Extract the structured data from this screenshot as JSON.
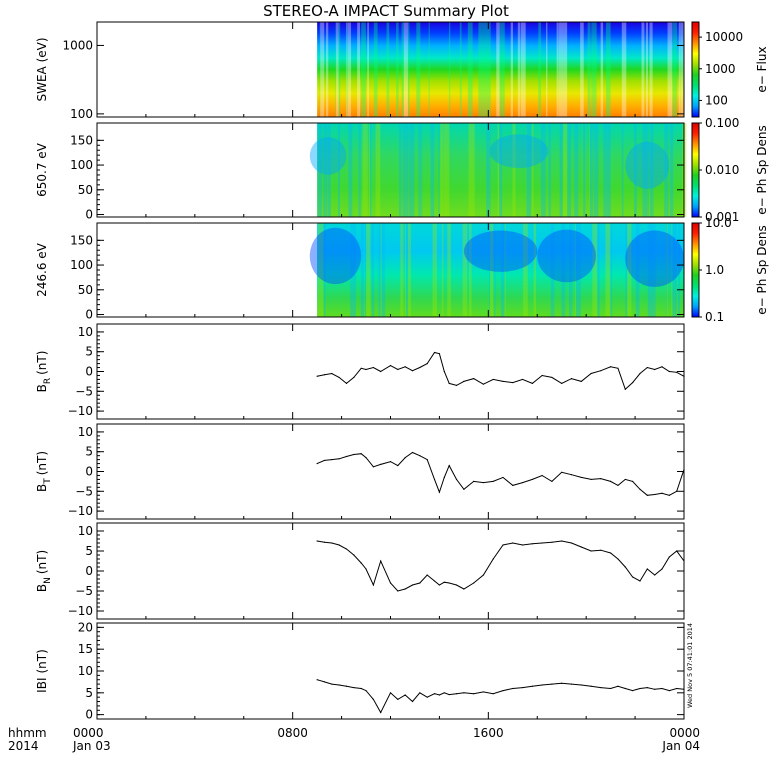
{
  "title": "STEREO-A IMPACT Summary Plot",
  "stamp": "Wed Nov 5 07:41:01 2014",
  "x_axis": {
    "row1_label": "hhmm",
    "row2_label": "2014",
    "ticks": [
      {
        "t": 0,
        "label": "0000",
        "date": "Jan 03"
      },
      {
        "t": 8,
        "label": "0800",
        "date": ""
      },
      {
        "t": 16,
        "label": "1600",
        "date": ""
      },
      {
        "t": 24,
        "label": "0000",
        "date": "Jan 04"
      }
    ]
  },
  "colors": {
    "spectral": [
      "#7a00e6",
      "#0000ff",
      "#00a0ff",
      "#00f0e0",
      "#00e070",
      "#20d020",
      "#a0e000",
      "#ffff00",
      "#ff9000",
      "#ff2000",
      "#e00000"
    ],
    "line": "#000000"
  },
  "chart_data": [
    {
      "type": "heatmap",
      "panel": "swea",
      "ylabel": "SWEA (eV)",
      "yscale": "log",
      "ylim": [
        90,
        2200
      ],
      "yticks": [
        {
          "v": 100,
          "label": "100"
        },
        {
          "v": 1000,
          "label": "1000"
        }
      ],
      "data_start_hour": 9.0,
      "xlim": [
        0,
        24
      ],
      "colorbar": {
        "label": "e− Flux",
        "scale": "log",
        "range": [
          30,
          30000
        ],
        "ticks": [
          {
            "v": 100,
            "label": "100"
          },
          {
            "v": 1000,
            "label": "1000"
          },
          {
            "v": 10000,
            "label": "10000"
          }
        ]
      }
    },
    {
      "type": "heatmap",
      "panel": "pad650",
      "ylabel": "650.7 eV",
      "ylim": [
        -5,
        185
      ],
      "yticks": [
        {
          "v": 0,
          "label": "0"
        },
        {
          "v": 50,
          "label": "50"
        },
        {
          "v": 100,
          "label": "100"
        },
        {
          "v": 150,
          "label": "150"
        }
      ],
      "data_start_hour": 9.0,
      "xlim": [
        0,
        24
      ],
      "colorbar": {
        "label": "e− Ph Sp Dens",
        "scale": "log",
        "range": [
          0.001,
          0.1
        ],
        "ticks": [
          {
            "v": 0.001,
            "label": "0.001"
          },
          {
            "v": 0.01,
            "label": "0.010"
          },
          {
            "v": 0.1,
            "label": "0.100"
          }
        ]
      }
    },
    {
      "type": "heatmap",
      "panel": "pad246",
      "ylabel": "246.6 eV",
      "ylim": [
        -5,
        185
      ],
      "yticks": [
        {
          "v": 0,
          "label": "0"
        },
        {
          "v": 50,
          "label": "50"
        },
        {
          "v": 100,
          "label": "100"
        },
        {
          "v": 150,
          "label": "150"
        }
      ],
      "data_start_hour": 9.0,
      "xlim": [
        0,
        24
      ],
      "colorbar": {
        "label": "e− Ph Sp Dens",
        "scale": "log",
        "range": [
          0.1,
          10
        ],
        "ticks": [
          {
            "v": 0.1,
            "label": "0.1"
          },
          {
            "v": 1,
            "label": "1.0"
          },
          {
            "v": 10,
            "label": "10.0"
          }
        ]
      }
    },
    {
      "type": "line",
      "panel": "br",
      "ylabel_main": "B",
      "ylabel_sub": "R",
      "ylabel_unit": "(nT)",
      "ylim": [
        -12,
        12
      ],
      "xlim": [
        0,
        24
      ],
      "yticks": [
        {
          "v": -10,
          "label": "−10"
        },
        {
          "v": -5,
          "label": "−5"
        },
        {
          "v": 0,
          "label": "0"
        },
        {
          "v": 5,
          "label": "5"
        },
        {
          "v": 10,
          "label": "10"
        }
      ],
      "x": [
        9.0,
        9.3,
        9.6,
        9.9,
        10.2,
        10.5,
        10.8,
        11.0,
        11.3,
        11.6,
        12.0,
        12.3,
        12.6,
        12.9,
        13.2,
        13.5,
        13.8,
        14.0,
        14.2,
        14.4,
        14.7,
        15.0,
        15.4,
        15.8,
        16.2,
        16.6,
        17.0,
        17.4,
        17.8,
        18.2,
        18.6,
        19.0,
        19.4,
        19.8,
        20.2,
        20.6,
        21.0,
        21.3,
        21.6,
        21.9,
        22.2,
        22.5,
        22.8,
        23.1,
        23.4,
        23.7,
        24.0
      ],
      "y": [
        -1.2,
        -0.8,
        -0.5,
        -1.5,
        -3.0,
        -1.5,
        0.8,
        0.5,
        1.0,
        0.0,
        1.5,
        0.5,
        1.2,
        0.2,
        1.0,
        2.0,
        4.8,
        4.5,
        0.0,
        -3.0,
        -3.5,
        -2.5,
        -1.8,
        -3.2,
        -2.0,
        -2.5,
        -2.8,
        -2.0,
        -3.0,
        -1.0,
        -1.5,
        -3.0,
        -1.8,
        -2.5,
        -0.5,
        0.2,
        1.2,
        0.8,
        -4.5,
        -2.8,
        -0.5,
        1.0,
        0.5,
        1.2,
        0.0,
        -0.2,
        -1.2
      ]
    },
    {
      "type": "line",
      "panel": "bt",
      "ylabel_main": "B",
      "ylabel_sub": "T",
      "ylabel_unit": "(nT)",
      "ylim": [
        -12,
        12
      ],
      "xlim": [
        0,
        24
      ],
      "yticks": [
        {
          "v": -10,
          "label": "−10"
        },
        {
          "v": -5,
          "label": "−5"
        },
        {
          "v": 0,
          "label": "0"
        },
        {
          "v": 5,
          "label": "5"
        },
        {
          "v": 10,
          "label": "10"
        }
      ],
      "x": [
        9.0,
        9.3,
        9.6,
        9.9,
        10.2,
        10.5,
        10.8,
        11.0,
        11.3,
        11.6,
        12.0,
        12.3,
        12.6,
        12.9,
        13.2,
        13.5,
        13.8,
        14.0,
        14.2,
        14.4,
        14.7,
        15.0,
        15.4,
        15.8,
        16.2,
        16.6,
        17.0,
        17.4,
        17.8,
        18.2,
        18.6,
        19.0,
        19.4,
        19.8,
        20.2,
        20.6,
        21.0,
        21.3,
        21.6,
        21.9,
        22.2,
        22.5,
        22.8,
        23.1,
        23.4,
        23.7,
        24.0
      ],
      "y": [
        2.0,
        2.8,
        3.0,
        3.2,
        3.8,
        4.3,
        4.5,
        3.5,
        1.2,
        1.8,
        2.5,
        1.5,
        3.5,
        4.8,
        4.0,
        3.0,
        -2.0,
        -5.2,
        -1.5,
        1.5,
        -2.0,
        -4.5,
        -2.5,
        -2.8,
        -2.5,
        -1.5,
        -3.5,
        -2.8,
        -2.0,
        -1.0,
        -2.5,
        -0.2,
        -0.8,
        -1.5,
        -2.0,
        -1.8,
        -2.5,
        -3.5,
        -2.0,
        -2.5,
        -4.5,
        -6.0,
        -5.8,
        -5.5,
        -6.0,
        -5.0,
        0.5
      ]
    },
    {
      "type": "line",
      "panel": "bn",
      "ylabel_main": "B",
      "ylabel_sub": "N",
      "ylabel_unit": "(nT)",
      "ylim": [
        -12,
        12
      ],
      "xlim": [
        0,
        24
      ],
      "yticks": [
        {
          "v": -10,
          "label": "−10"
        },
        {
          "v": -5,
          "label": "−5"
        },
        {
          "v": 0,
          "label": "0"
        },
        {
          "v": 5,
          "label": "5"
        },
        {
          "v": 10,
          "label": "10"
        }
      ],
      "x": [
        9.0,
        9.3,
        9.6,
        9.9,
        10.2,
        10.5,
        10.8,
        11.0,
        11.3,
        11.6,
        12.0,
        12.3,
        12.6,
        12.9,
        13.2,
        13.5,
        13.8,
        14.0,
        14.2,
        14.4,
        14.7,
        15.0,
        15.4,
        15.8,
        16.2,
        16.6,
        17.0,
        17.4,
        17.8,
        18.2,
        18.6,
        19.0,
        19.4,
        19.8,
        20.2,
        20.6,
        21.0,
        21.3,
        21.6,
        21.9,
        22.2,
        22.5,
        22.8,
        23.1,
        23.4,
        23.7,
        24.0
      ],
      "y": [
        7.5,
        7.2,
        7.0,
        6.5,
        5.5,
        4.0,
        2.0,
        0.5,
        -3.5,
        2.5,
        -3.0,
        -5.0,
        -4.5,
        -3.5,
        -3.0,
        -1.0,
        -2.5,
        -3.5,
        -2.8,
        -3.0,
        -3.5,
        -4.5,
        -3.0,
        -1.0,
        3.0,
        6.5,
        7.0,
        6.5,
        6.8,
        7.0,
        7.2,
        7.5,
        7.0,
        6.0,
        5.0,
        5.2,
        4.5,
        3.0,
        1.0,
        -1.5,
        -2.5,
        0.5,
        -1.0,
        0.5,
        3.5,
        5.0,
        2.5
      ]
    },
    {
      "type": "line",
      "panel": "bmag",
      "ylabel_main": "IBI",
      "ylabel_sub": "",
      "ylabel_unit": "(nT)",
      "ylim": [
        -1,
        21
      ],
      "xlim": [
        0,
        24
      ],
      "yticks": [
        {
          "v": 0,
          "label": "0"
        },
        {
          "v": 5,
          "label": "5"
        },
        {
          "v": 10,
          "label": "10"
        },
        {
          "v": 15,
          "label": "15"
        },
        {
          "v": 20,
          "label": "20"
        }
      ],
      "x": [
        9.0,
        9.3,
        9.6,
        9.9,
        10.2,
        10.5,
        10.8,
        11.0,
        11.3,
        11.6,
        12.0,
        12.3,
        12.6,
        12.9,
        13.2,
        13.5,
        13.8,
        14.0,
        14.2,
        14.4,
        14.7,
        15.0,
        15.4,
        15.8,
        16.2,
        16.6,
        17.0,
        17.4,
        17.8,
        18.2,
        18.6,
        19.0,
        19.4,
        19.8,
        20.2,
        20.6,
        21.0,
        21.3,
        21.6,
        21.9,
        22.2,
        22.5,
        22.8,
        23.1,
        23.4,
        23.7,
        24.0
      ],
      "y": [
        8.0,
        7.5,
        7.0,
        6.8,
        6.5,
        6.2,
        6.0,
        5.5,
        3.5,
        0.5,
        5.0,
        3.5,
        4.5,
        3.0,
        5.0,
        4.0,
        4.8,
        4.5,
        5.0,
        4.6,
        4.8,
        5.0,
        4.8,
        5.2,
        4.8,
        5.5,
        6.0,
        6.2,
        6.5,
        6.8,
        7.0,
        7.2,
        7.0,
        6.8,
        6.5,
        6.2,
        6.0,
        6.5,
        6.0,
        5.5,
        6.0,
        6.2,
        5.8,
        6.0,
        5.5,
        6.0,
        5.8
      ]
    }
  ]
}
